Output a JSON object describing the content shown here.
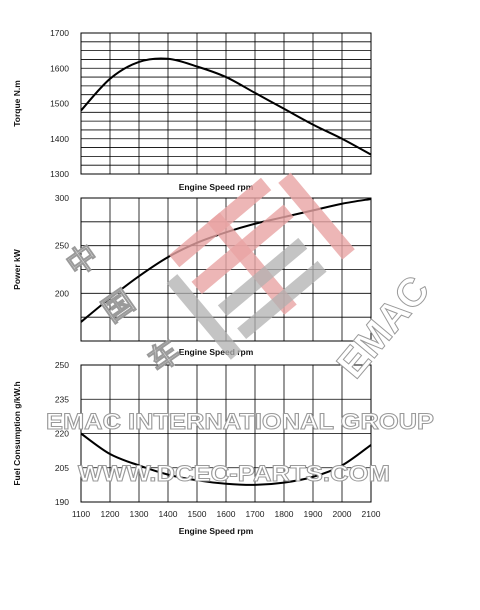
{
  "chart_data": [
    {
      "type": "line",
      "ylabel": "Torque  N.m",
      "xlabel": "Engine Speed rpm",
      "ylim": [
        1300,
        1700
      ],
      "yticks": [
        "1700",
        "1600",
        "1500",
        "1400",
        "1300"
      ],
      "x": [
        1100,
        1200,
        1300,
        1400,
        1500,
        1600,
        1700,
        1800,
        1900,
        2000,
        2100
      ],
      "series": [
        {
          "values": [
            1480,
            1570,
            1618,
            1627,
            1605,
            1575,
            1530,
            1485,
            1440,
            1400,
            1355
          ]
        }
      ],
      "grid": true
    },
    {
      "type": "line",
      "ylabel": "Power  kW",
      "xlabel": "Engine Speed rpm",
      "ylim": [
        150,
        300
      ],
      "yticks": [
        "300",
        "250",
        "200"
      ],
      "x": [
        1100,
        1200,
        1300,
        1400,
        1500,
        1600,
        1700,
        1800,
        1900,
        2000,
        2100
      ],
      "series": [
        {
          "values": [
            170,
            195,
            218,
            238,
            253,
            264,
            273,
            280,
            287,
            294,
            299
          ]
        }
      ],
      "grid": true
    },
    {
      "type": "line",
      "ylabel": "Fuel Consumption  g/kW.h",
      "xlabel": "Engine Speed rpm",
      "ylim": [
        190,
        250
      ],
      "yticks": [
        "250",
        "235",
        "220",
        "205",
        "190"
      ],
      "xticks": [
        "1100",
        "1200",
        "1300",
        "1400",
        "1500",
        "1600",
        "1700",
        "1800",
        "1900",
        "2000",
        "2100"
      ],
      "x": [
        1100,
        1200,
        1300,
        1400,
        1500,
        1600,
        1700,
        1800,
        1900,
        2000,
        2100
      ],
      "series": [
        {
          "values": [
            220,
            211,
            206,
            202,
            199.5,
            198,
            197.5,
            198.5,
            201,
            206,
            215
          ]
        }
      ],
      "grid": true
    }
  ],
  "watermark": {
    "company": "EMAC INTERNATIONAL GROUP",
    "website": "WWW.DCEC-PARTS.COM",
    "logo_text": "EMAC",
    "logo_chars": [
      "中",
      "国",
      "车"
    ],
    "colors": {
      "red": "#e39a9a",
      "grey": "#a9a9a9"
    }
  }
}
